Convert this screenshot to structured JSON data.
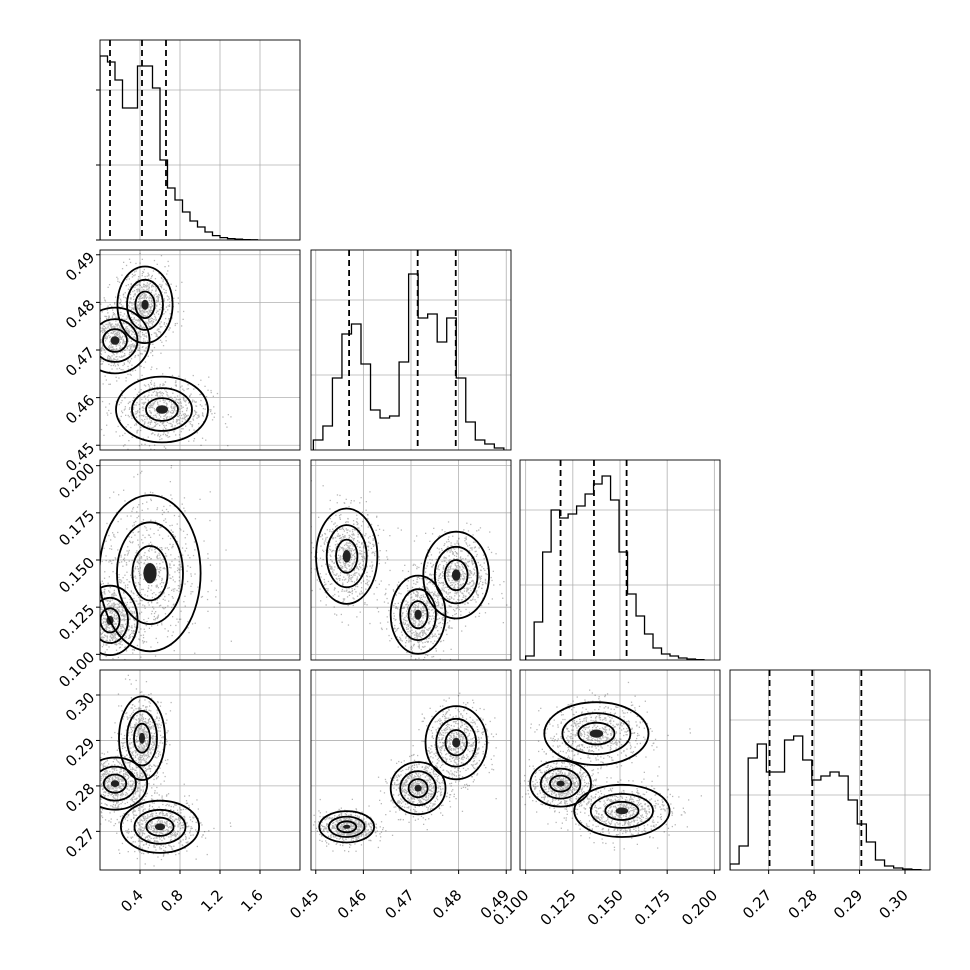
{
  "chart_data": {
    "type": "corner",
    "title": "",
    "grid": true,
    "parameters": [
      {
        "id": "p1",
        "label": "",
        "range": [
          0.0,
          2.0
        ],
        "ticks": [
          "0.4",
          "0.8",
          "1.2",
          "1.6"
        ],
        "quantiles": [
          0.1,
          0.42,
          0.66
        ],
        "histogram": {
          "bin_edges": [
            0.0,
            0.075,
            0.15,
            0.225,
            0.3,
            0.375,
            0.45,
            0.525,
            0.6,
            0.675,
            0.75,
            0.825,
            0.9,
            0.975,
            1.05,
            1.125,
            1.2,
            1.275,
            1.35,
            1.425,
            1.5,
            1.575
          ],
          "density": [
            0.92,
            0.89,
            0.8,
            0.66,
            0.66,
            0.87,
            0.87,
            0.76,
            0.4,
            0.26,
            0.2,
            0.14,
            0.095,
            0.065,
            0.04,
            0.022,
            0.012,
            0.007,
            0.004,
            0.002,
            0.001
          ]
        }
      },
      {
        "id": "p2",
        "label": "",
        "range": [
          0.449,
          0.491
        ],
        "ticks": [
          "0.45",
          "0.46",
          "0.47",
          "0.48",
          "0.49"
        ],
        "quantiles": [
          0.457,
          0.4714,
          0.4794
        ],
        "histogram": {
          "bin_edges": [
            0.4495,
            0.4515,
            0.4535,
            0.4555,
            0.4575,
            0.4595,
            0.4615,
            0.4635,
            0.4655,
            0.4675,
            0.4695,
            0.4715,
            0.4735,
            0.4755,
            0.4775,
            0.4795,
            0.4815,
            0.4835,
            0.4855,
            0.4875,
            0.4895
          ],
          "density": [
            0.05,
            0.12,
            0.36,
            0.58,
            0.63,
            0.43,
            0.2,
            0.16,
            0.17,
            0.44,
            0.88,
            0.66,
            0.68,
            0.54,
            0.66,
            0.36,
            0.14,
            0.05,
            0.03,
            0.01
          ]
        }
      },
      {
        "id": "p3",
        "label": "",
        "range": [
          0.097,
          0.203
        ],
        "ticks": [
          "0.100",
          "0.125",
          "0.150",
          "0.175",
          "0.200"
        ],
        "quantiles": [
          0.1185,
          0.1362,
          0.1535
        ],
        "histogram": {
          "bin_edges": [
            0.1,
            0.1045,
            0.109,
            0.1135,
            0.118,
            0.1225,
            0.127,
            0.1315,
            0.136,
            0.1405,
            0.145,
            0.1495,
            0.154,
            0.1585,
            0.163,
            0.1675,
            0.172,
            0.1765,
            0.181,
            0.1855,
            0.19,
            0.1945
          ],
          "density": [
            0.02,
            0.19,
            0.54,
            0.75,
            0.71,
            0.73,
            0.77,
            0.83,
            0.88,
            0.92,
            0.8,
            0.54,
            0.33,
            0.22,
            0.13,
            0.06,
            0.03,
            0.02,
            0.01,
            0.005,
            0.002
          ]
        }
      },
      {
        "id": "p4",
        "label": "",
        "range": [
          0.2615,
          0.3055
        ],
        "ticks": [
          "0.27",
          "0.28",
          "0.29",
          "0.30"
        ],
        "quantiles": [
          0.2702,
          0.2796,
          0.2904
        ],
        "histogram": {
          "bin_edges": [
            0.2615,
            0.2635,
            0.2655,
            0.2675,
            0.2695,
            0.2715,
            0.2735,
            0.2755,
            0.2775,
            0.2795,
            0.2815,
            0.2835,
            0.2855,
            0.2875,
            0.2895,
            0.2915,
            0.2935,
            0.2955,
            0.2975,
            0.2995,
            0.3015,
            0.3035
          ],
          "density": [
            0.03,
            0.12,
            0.56,
            0.63,
            0.49,
            0.49,
            0.65,
            0.67,
            0.55,
            0.45,
            0.47,
            0.49,
            0.47,
            0.35,
            0.23,
            0.14,
            0.05,
            0.02,
            0.01,
            0.005,
            0.002
          ]
        }
      }
    ],
    "pairs": [
      {
        "x": "p1",
        "y": "p2",
        "modes": [
          {
            "cx": 0.15,
            "cy": 0.472,
            "sx": 0.15,
            "sy": 0.003
          },
          {
            "cx": 0.45,
            "cy": 0.4795,
            "sx": 0.12,
            "sy": 0.0035
          },
          {
            "cx": 0.62,
            "cy": 0.4575,
            "sx": 0.2,
            "sy": 0.003
          }
        ]
      },
      {
        "x": "p1",
        "y": "p3",
        "modes": [
          {
            "cx": 0.1,
            "cy": 0.118,
            "sx": 0.12,
            "sy": 0.008
          },
          {
            "cx": 0.5,
            "cy": 0.143,
            "sx": 0.22,
            "sy": 0.018
          }
        ]
      },
      {
        "x": "p1",
        "y": "p4",
        "modes": [
          {
            "cx": 0.15,
            "cy": 0.2805,
            "sx": 0.14,
            "sy": 0.0025
          },
          {
            "cx": 0.42,
            "cy": 0.2905,
            "sx": 0.1,
            "sy": 0.004
          },
          {
            "cx": 0.6,
            "cy": 0.271,
            "sx": 0.17,
            "sy": 0.0025
          }
        ]
      },
      {
        "x": "p2",
        "y": "p3",
        "modes": [
          {
            "cx": 0.4565,
            "cy": 0.152,
            "sx": 0.0028,
            "sy": 0.011
          },
          {
            "cx": 0.4715,
            "cy": 0.121,
            "sx": 0.0025,
            "sy": 0.009
          },
          {
            "cx": 0.4795,
            "cy": 0.142,
            "sx": 0.003,
            "sy": 0.01
          }
        ]
      },
      {
        "x": "p2",
        "y": "p4",
        "modes": [
          {
            "cx": 0.4565,
            "cy": 0.271,
            "sx": 0.0025,
            "sy": 0.0015
          },
          {
            "cx": 0.4715,
            "cy": 0.2795,
            "sx": 0.0025,
            "sy": 0.0025
          },
          {
            "cx": 0.4795,
            "cy": 0.2895,
            "sx": 0.0028,
            "sy": 0.0035
          }
        ]
      },
      {
        "x": "p3",
        "y": "p4",
        "modes": [
          {
            "cx": 0.1185,
            "cy": 0.2805,
            "sx": 0.007,
            "sy": 0.0022
          },
          {
            "cx": 0.1375,
            "cy": 0.2915,
            "sx": 0.012,
            "sy": 0.003
          },
          {
            "cx": 0.151,
            "cy": 0.2745,
            "sx": 0.011,
            "sy": 0.0025
          }
        ]
      }
    ],
    "colors": {
      "hist": "#000000",
      "points": "#000000",
      "contours": "#000000",
      "grid": "#b0b0b0"
    }
  }
}
